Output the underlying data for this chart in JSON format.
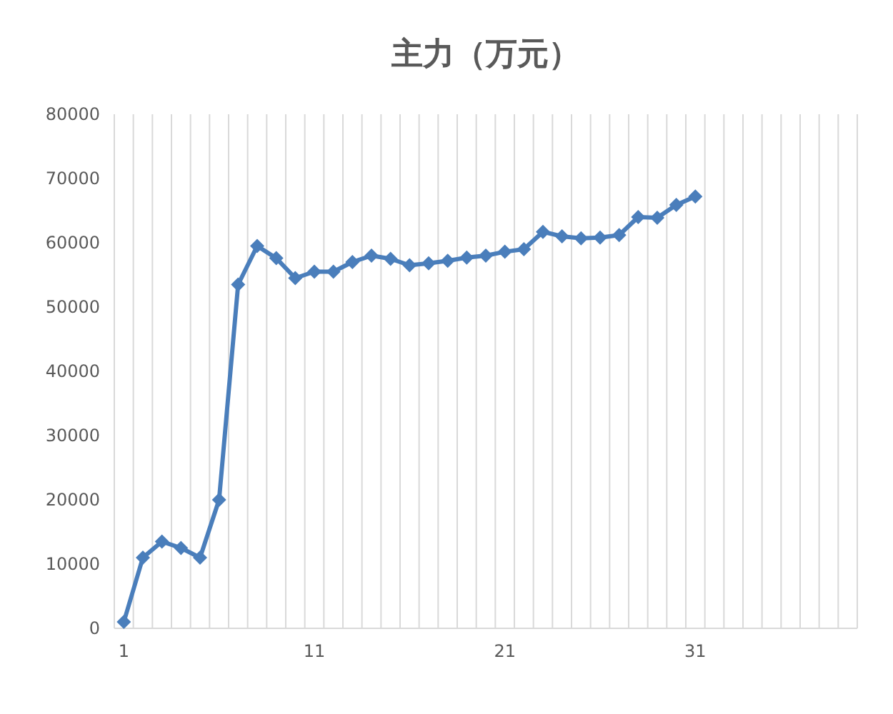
{
  "chart_data": {
    "type": "line",
    "title": "主力（万元）",
    "categories": [
      "1",
      null,
      null,
      null,
      null,
      null,
      null,
      null,
      null,
      null,
      "11",
      null,
      null,
      null,
      null,
      null,
      null,
      null,
      null,
      null,
      "21",
      null,
      null,
      null,
      null,
      null,
      null,
      null,
      null,
      null,
      "31",
      null,
      null,
      null,
      null,
      null,
      null,
      null,
      null
    ],
    "series": [
      {
        "color": "#4a7ebb",
        "values": [
          1000,
          11000,
          13500,
          12500,
          11000,
          20000,
          53500,
          59500,
          57600,
          54500,
          55500,
          55500,
          57000,
          58000,
          57500,
          56500,
          56800,
          57200,
          57700,
          58000,
          58600,
          59000,
          61700,
          61000,
          60700,
          60800,
          61200,
          64000,
          63900,
          65900,
          67200,
          null,
          null,
          null,
          null,
          null,
          null,
          null,
          null
        ]
      }
    ],
    "ylim": [
      0,
      80000
    ],
    "yticks": [
      0,
      10000,
      20000,
      30000,
      40000,
      50000,
      60000,
      70000,
      80000
    ],
    "grid": "x",
    "marker": "diamond",
    "line_style": "solid"
  }
}
